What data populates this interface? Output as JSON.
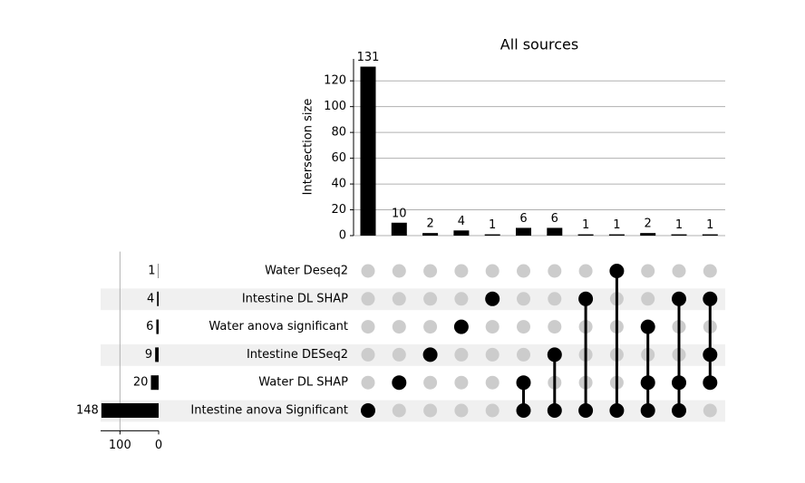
{
  "chart_data": {
    "type": "upset",
    "title": "All sources",
    "ylabel": "Intersection size",
    "ylim": [
      0,
      137
    ],
    "yticks": [
      0,
      20,
      40,
      60,
      80,
      100,
      120
    ],
    "grid": true,
    "color": "#000000",
    "inactive_color": "#cccccc",
    "stripe_color": "#f0f0f0",
    "sets": {
      "names": [
        "Water Deseq2",
        "Intestine DL SHAP",
        "Water anova significant",
        "Intestine DESeq2",
        "Water DL SHAP",
        "Intestine anova Significant"
      ],
      "sizes": [
        1,
        4,
        6,
        9,
        20,
        148
      ],
      "xlim": [
        0,
        150
      ],
      "xticks": [
        0,
        100
      ]
    },
    "intersections": {
      "values": [
        131,
        10,
        2,
        4,
        1,
        6,
        6,
        1,
        1,
        2,
        1,
        1
      ],
      "members": [
        [
          5
        ],
        [
          4
        ],
        [
          3
        ],
        [
          2
        ],
        [
          1
        ],
        [
          4,
          5
        ],
        [
          3,
          5
        ],
        [
          1,
          5
        ],
        [
          0,
          5
        ],
        [
          2,
          4,
          5
        ],
        [
          1,
          4,
          5
        ],
        [
          1,
          3,
          4
        ]
      ]
    }
  }
}
